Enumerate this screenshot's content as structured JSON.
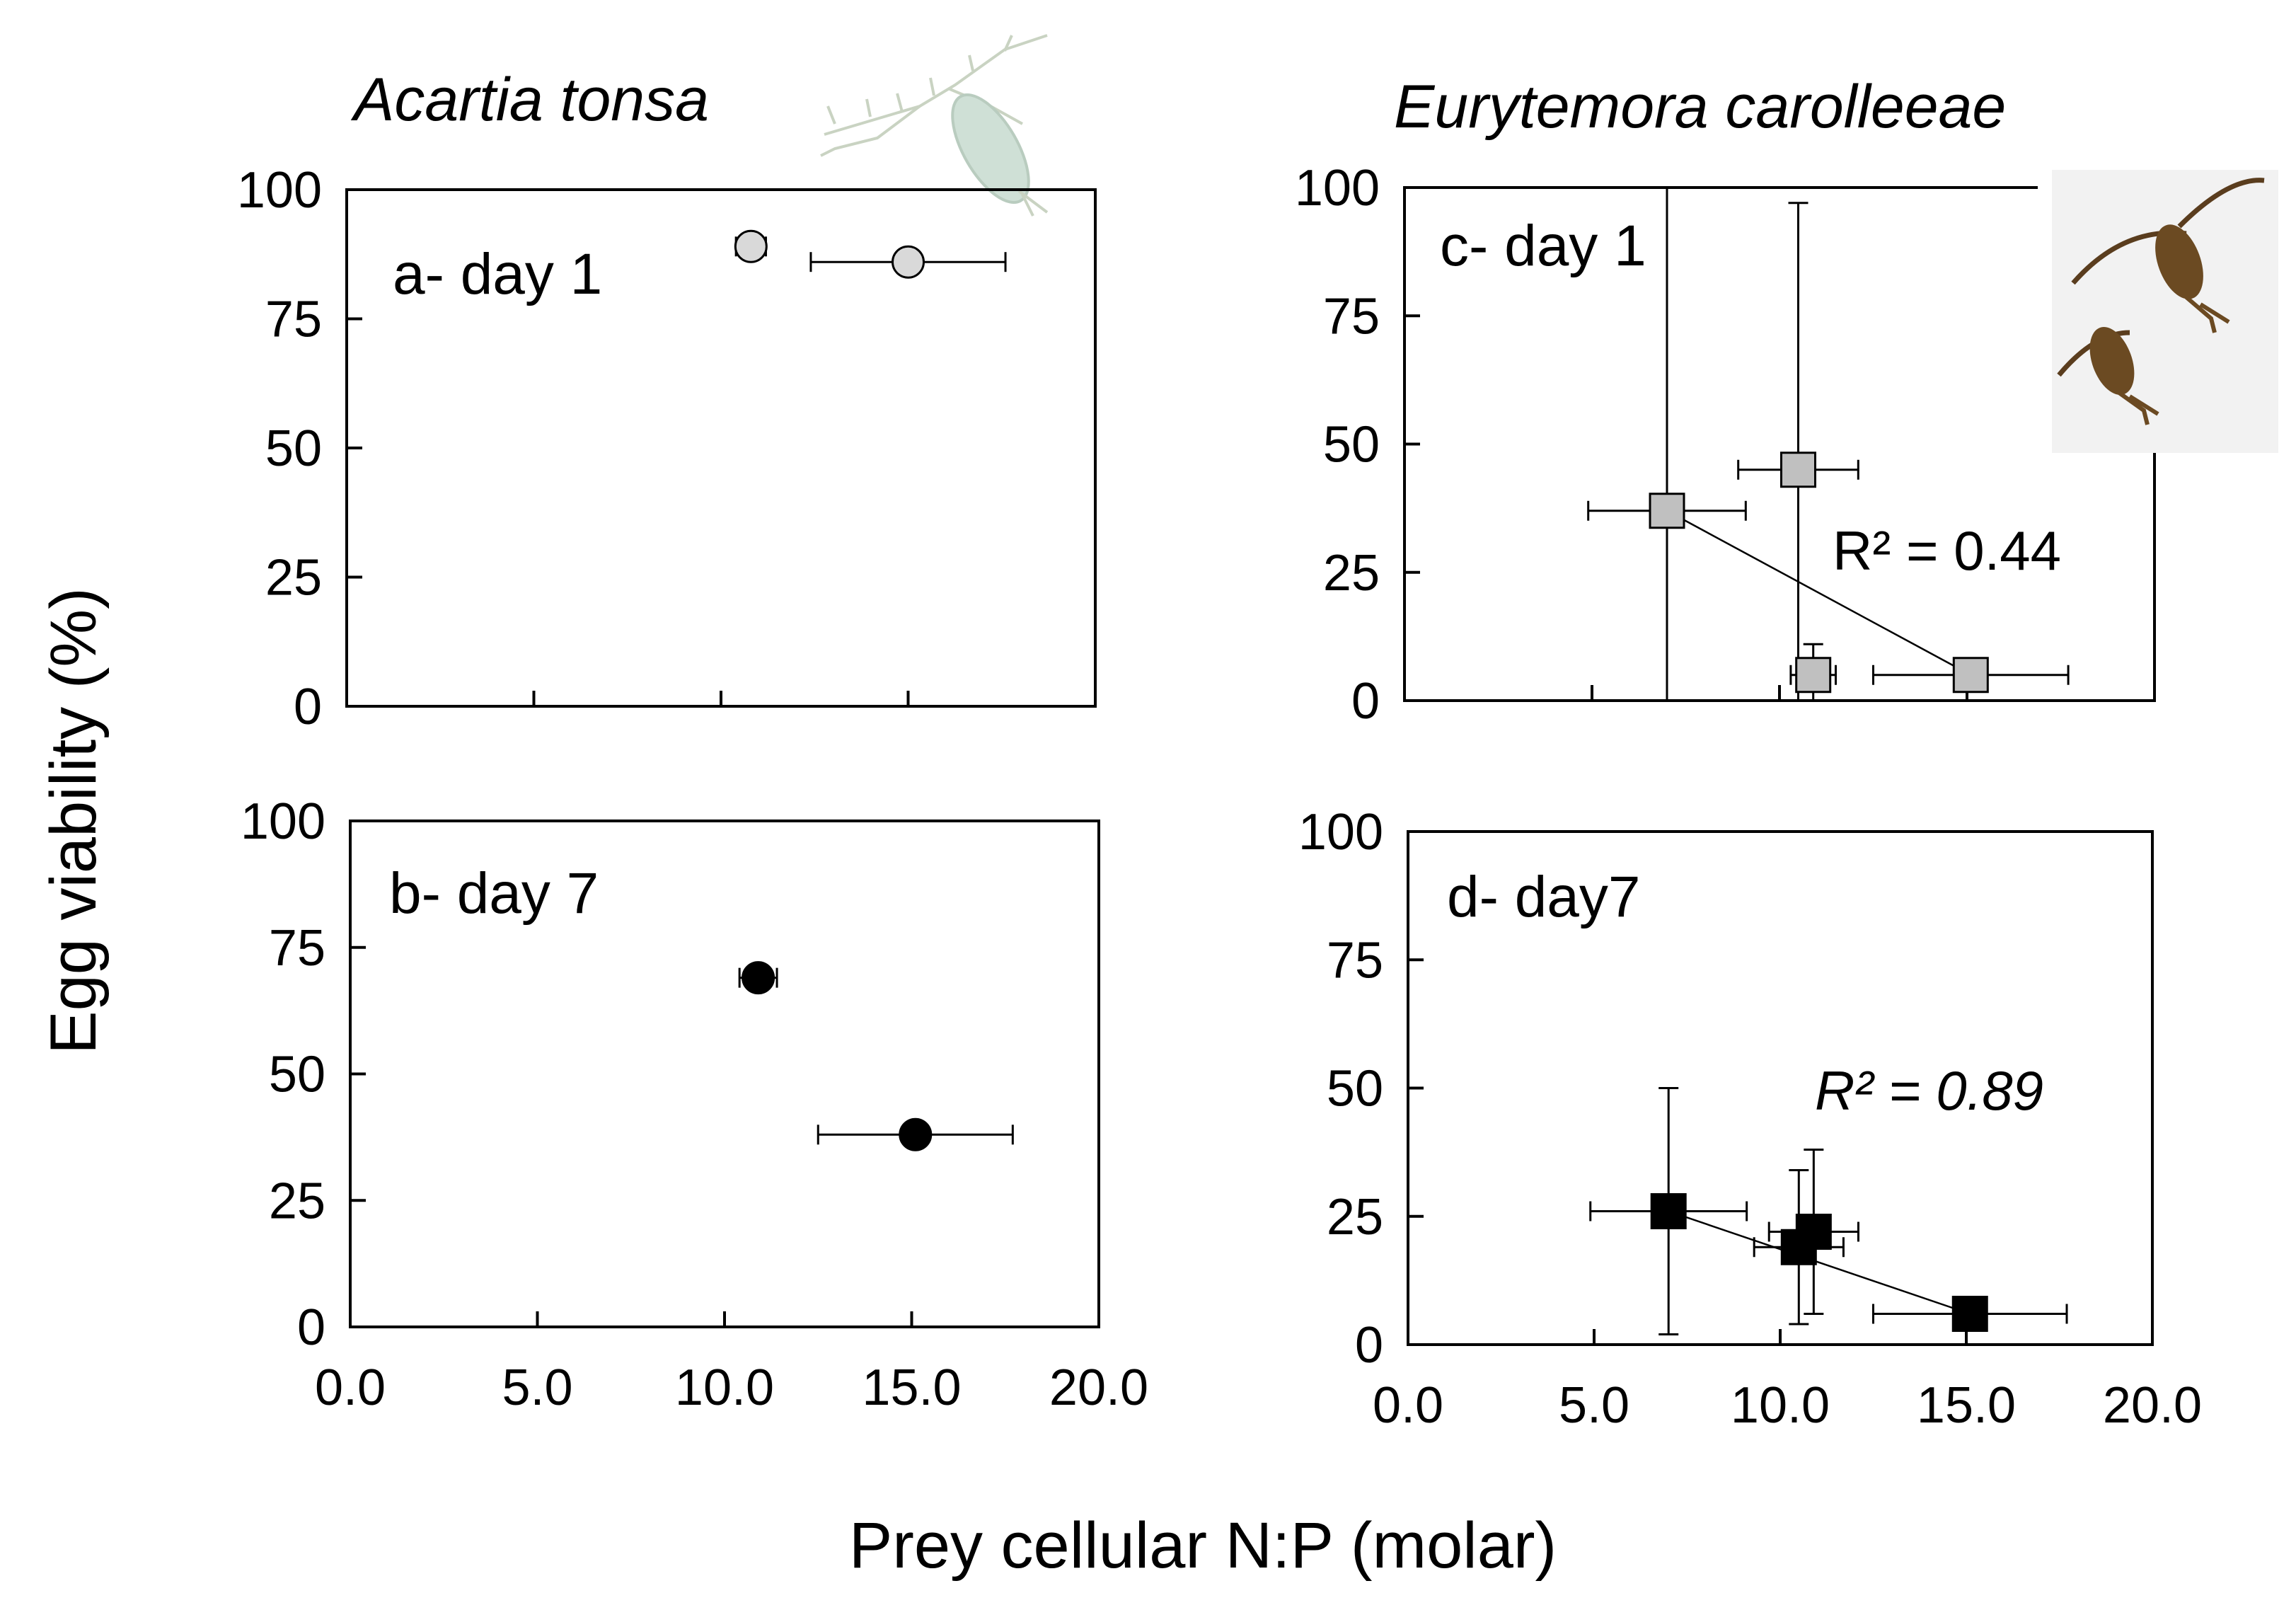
{
  "figure": {
    "ylabel": "Egg viability (%)",
    "xlabel": "Prey cellular N:P (molar)",
    "species_left": "Acartia tonsa",
    "species_right": "Eurytemora carolleeae",
    "mascot_left": "acartia-copepod-icon",
    "mascot_right": "eurytemora-copepod-icon"
  },
  "chart_data": [
    {
      "id": "a",
      "type": "scatter",
      "title": "a- day 1",
      "marker": "circle",
      "fill": "#d9d9d9",
      "xlim": [
        0,
        20
      ],
      "ylim": [
        0,
        100
      ],
      "yticks": [
        "0",
        "25",
        "50",
        "75",
        "100"
      ],
      "xticks": [],
      "points": [
        {
          "x": 10.8,
          "y": 89,
          "xerr": 0.4,
          "yerr": 0
        },
        {
          "x": 15.0,
          "y": 86,
          "xerr": 2.6,
          "yerr": 0
        }
      ]
    },
    {
      "id": "b",
      "type": "scatter",
      "title": "b- day 7",
      "marker": "circle",
      "fill": "#000000",
      "xlim": [
        0,
        20
      ],
      "ylim": [
        0,
        100
      ],
      "yticks": [
        "0",
        "25",
        "50",
        "75",
        "100"
      ],
      "xticks": [
        "0.0",
        "5.0",
        "10.0",
        "15.0",
        "20.0"
      ],
      "points": [
        {
          "x": 10.9,
          "y": 69,
          "xerr": 0.5,
          "yerr": 0
        },
        {
          "x": 15.1,
          "y": 38,
          "xerr": 2.6,
          "yerr": 0
        }
      ]
    },
    {
      "id": "c",
      "type": "scatter",
      "title": "c- day 1",
      "marker": "square",
      "fill": "#c0c0c0",
      "xlim": [
        0,
        20
      ],
      "ylim": [
        0,
        100
      ],
      "yticks": [
        "0",
        "25",
        "50",
        "75",
        "100"
      ],
      "xticks": [],
      "r2": "R² = 0.44",
      "points": [
        {
          "x": 7.0,
          "y": 37,
          "xerr": 2.1,
          "yerr": 63
        },
        {
          "x": 10.5,
          "y": 45,
          "xerr": 1.6,
          "yerr": 52
        },
        {
          "x": 10.9,
          "y": 5,
          "xerr": 0.6,
          "yerr": 6
        },
        {
          "x": 15.1,
          "y": 5,
          "xerr": 2.6,
          "yerr": 0
        }
      ],
      "trend": [
        {
          "x": 7.0,
          "y": 37
        },
        {
          "x": 15.1,
          "y": 5
        }
      ]
    },
    {
      "id": "d",
      "type": "scatter",
      "title": "d- day7",
      "marker": "square",
      "fill": "#000000",
      "xlim": [
        0,
        20
      ],
      "ylim": [
        0,
        100
      ],
      "yticks": [
        "0",
        "25",
        "50",
        "75",
        "100"
      ],
      "xticks": [
        "0.0",
        "5.0",
        "10.0",
        "15.0",
        "20.0"
      ],
      "r2": "R² = 0.89",
      "points": [
        {
          "x": 7.0,
          "y": 26,
          "xerr": 2.1,
          "yerr": 24
        },
        {
          "x": 10.5,
          "y": 19,
          "xerr": 1.2,
          "yerr": 15
        },
        {
          "x": 10.9,
          "y": 22,
          "xerr": 1.2,
          "yerr": 16
        },
        {
          "x": 15.1,
          "y": 6,
          "xerr": 2.6,
          "yerr": 0
        }
      ],
      "trend": [
        {
          "x": 7.0,
          "y": 26
        },
        {
          "x": 15.1,
          "y": 6
        }
      ]
    }
  ]
}
